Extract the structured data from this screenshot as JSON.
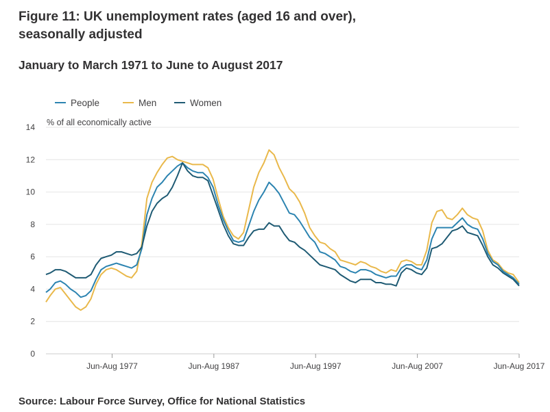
{
  "title_line1": "Figure 11: UK unemployment rates (aged 16 and over),",
  "title_line2": "seasonally adjusted",
  "subtitle": "January to March 1971 to June to August 2017",
  "source": "Source: Labour Force Survey, Office for National Statistics",
  "colors": {
    "people": "#2b83b0",
    "men": "#e9b84a",
    "women": "#1e5a73",
    "grid": "#e4e4e4",
    "axis": "#cccccc"
  },
  "chart_data": {
    "type": "line",
    "ylabel": "% of all economically active",
    "xlabel": "",
    "ylim": [
      0,
      14
    ],
    "yticks": [
      0,
      2,
      4,
      6,
      8,
      10,
      12,
      14
    ],
    "xlim": [
      1971.08,
      2017.58
    ],
    "xticks": [
      {
        "value": 1977.58,
        "label": "Jun-Aug 1977"
      },
      {
        "value": 1987.58,
        "label": "Jun-Aug 1987"
      },
      {
        "value": 1997.58,
        "label": "Jun-Aug 1997"
      },
      {
        "value": 2007.58,
        "label": "Jun-Aug 2007"
      },
      {
        "value": 2017.58,
        "label": "Jun-Aug 2017"
      }
    ],
    "grid": "horizontal",
    "legend_position": "top-left",
    "series": [
      {
        "key": "people",
        "name": "People",
        "points": [
          [
            1971.08,
            3.8
          ],
          [
            1971.5,
            4.0
          ],
          [
            1972.0,
            4.4
          ],
          [
            1972.5,
            4.5
          ],
          [
            1973.0,
            4.3
          ],
          [
            1973.5,
            4.0
          ],
          [
            1974.0,
            3.8
          ],
          [
            1974.5,
            3.5
          ],
          [
            1975.0,
            3.6
          ],
          [
            1975.5,
            3.9
          ],
          [
            1976.0,
            4.6
          ],
          [
            1976.5,
            5.2
          ],
          [
            1977.0,
            5.4
          ],
          [
            1977.5,
            5.5
          ],
          [
            1978.0,
            5.6
          ],
          [
            1978.5,
            5.5
          ],
          [
            1979.0,
            5.4
          ],
          [
            1979.5,
            5.3
          ],
          [
            1980.0,
            5.5
          ],
          [
            1980.5,
            6.5
          ],
          [
            1981.0,
            8.6
          ],
          [
            1981.5,
            9.6
          ],
          [
            1982.0,
            10.3
          ],
          [
            1982.5,
            10.6
          ],
          [
            1983.0,
            11.0
          ],
          [
            1983.5,
            11.3
          ],
          [
            1984.0,
            11.6
          ],
          [
            1984.5,
            11.8
          ],
          [
            1985.0,
            11.5
          ],
          [
            1985.5,
            11.3
          ],
          [
            1986.0,
            11.2
          ],
          [
            1986.5,
            11.2
          ],
          [
            1987.0,
            10.9
          ],
          [
            1987.5,
            10.3
          ],
          [
            1988.0,
            9.2
          ],
          [
            1988.5,
            8.3
          ],
          [
            1989.0,
            7.6
          ],
          [
            1989.5,
            7.0
          ],
          [
            1990.0,
            6.9
          ],
          [
            1990.5,
            7.0
          ],
          [
            1991.0,
            7.9
          ],
          [
            1991.5,
            8.8
          ],
          [
            1992.0,
            9.5
          ],
          [
            1992.5,
            10.0
          ],
          [
            1993.0,
            10.6
          ],
          [
            1993.5,
            10.3
          ],
          [
            1994.0,
            9.9
          ],
          [
            1994.5,
            9.3
          ],
          [
            1995.0,
            8.7
          ],
          [
            1995.5,
            8.6
          ],
          [
            1996.0,
            8.2
          ],
          [
            1996.5,
            7.7
          ],
          [
            1997.0,
            7.2
          ],
          [
            1997.5,
            6.9
          ],
          [
            1998.0,
            6.3
          ],
          [
            1998.5,
            6.2
          ],
          [
            1999.0,
            6.0
          ],
          [
            1999.5,
            5.8
          ],
          [
            2000.0,
            5.4
          ],
          [
            2000.5,
            5.3
          ],
          [
            2001.0,
            5.1
          ],
          [
            2001.5,
            5.0
          ],
          [
            2002.0,
            5.2
          ],
          [
            2002.5,
            5.2
          ],
          [
            2003.0,
            5.1
          ],
          [
            2003.5,
            4.9
          ],
          [
            2004.0,
            4.8
          ],
          [
            2004.5,
            4.7
          ],
          [
            2005.0,
            4.8
          ],
          [
            2005.5,
            4.8
          ],
          [
            2006.0,
            5.3
          ],
          [
            2006.5,
            5.5
          ],
          [
            2007.0,
            5.5
          ],
          [
            2007.5,
            5.3
          ],
          [
            2008.0,
            5.2
          ],
          [
            2008.5,
            5.8
          ],
          [
            2009.0,
            7.1
          ],
          [
            2009.5,
            7.8
          ],
          [
            2010.0,
            7.8
          ],
          [
            2010.5,
            7.8
          ],
          [
            2011.0,
            7.8
          ],
          [
            2011.5,
            8.1
          ],
          [
            2012.0,
            8.4
          ],
          [
            2012.5,
            8.0
          ],
          [
            2013.0,
            7.8
          ],
          [
            2013.5,
            7.7
          ],
          [
            2014.0,
            7.1
          ],
          [
            2014.5,
            6.2
          ],
          [
            2015.0,
            5.7
          ],
          [
            2015.5,
            5.5
          ],
          [
            2016.0,
            5.1
          ],
          [
            2016.5,
            4.9
          ],
          [
            2017.0,
            4.7
          ],
          [
            2017.58,
            4.3
          ]
        ]
      },
      {
        "key": "men",
        "name": "Men",
        "points": [
          [
            1971.08,
            3.2
          ],
          [
            1971.5,
            3.6
          ],
          [
            1972.0,
            4.0
          ],
          [
            1972.5,
            4.1
          ],
          [
            1973.0,
            3.7
          ],
          [
            1973.5,
            3.3
          ],
          [
            1974.0,
            2.9
          ],
          [
            1974.5,
            2.7
          ],
          [
            1975.0,
            2.9
          ],
          [
            1975.5,
            3.4
          ],
          [
            1976.0,
            4.3
          ],
          [
            1976.5,
            4.9
          ],
          [
            1977.0,
            5.2
          ],
          [
            1977.5,
            5.3
          ],
          [
            1978.0,
            5.2
          ],
          [
            1978.5,
            5.0
          ],
          [
            1979.0,
            4.8
          ],
          [
            1979.5,
            4.7
          ],
          [
            1980.0,
            5.1
          ],
          [
            1980.5,
            6.8
          ],
          [
            1981.0,
            9.6
          ],
          [
            1981.5,
            10.6
          ],
          [
            1982.0,
            11.2
          ],
          [
            1982.5,
            11.7
          ],
          [
            1983.0,
            12.1
          ],
          [
            1983.5,
            12.2
          ],
          [
            1984.0,
            12.0
          ],
          [
            1984.5,
            11.9
          ],
          [
            1985.0,
            11.8
          ],
          [
            1985.5,
            11.7
          ],
          [
            1986.0,
            11.7
          ],
          [
            1986.5,
            11.7
          ],
          [
            1987.0,
            11.5
          ],
          [
            1987.5,
            10.8
          ],
          [
            1988.0,
            9.6
          ],
          [
            1988.5,
            8.5
          ],
          [
            1989.0,
            7.8
          ],
          [
            1989.5,
            7.3
          ],
          [
            1990.0,
            7.1
          ],
          [
            1990.5,
            7.5
          ],
          [
            1991.0,
            8.9
          ],
          [
            1991.5,
            10.3
          ],
          [
            1992.0,
            11.2
          ],
          [
            1992.5,
            11.8
          ],
          [
            1993.0,
            12.6
          ],
          [
            1993.5,
            12.3
          ],
          [
            1994.0,
            11.5
          ],
          [
            1994.5,
            10.9
          ],
          [
            1995.0,
            10.2
          ],
          [
            1995.5,
            9.9
          ],
          [
            1996.0,
            9.4
          ],
          [
            1996.5,
            8.7
          ],
          [
            1997.0,
            7.8
          ],
          [
            1997.5,
            7.3
          ],
          [
            1998.0,
            6.9
          ],
          [
            1998.5,
            6.8
          ],
          [
            1999.0,
            6.5
          ],
          [
            1999.5,
            6.3
          ],
          [
            2000.0,
            5.8
          ],
          [
            2000.5,
            5.7
          ],
          [
            2001.0,
            5.6
          ],
          [
            2001.5,
            5.5
          ],
          [
            2002.0,
            5.7
          ],
          [
            2002.5,
            5.6
          ],
          [
            2003.0,
            5.4
          ],
          [
            2003.5,
            5.3
          ],
          [
            2004.0,
            5.1
          ],
          [
            2004.5,
            5.0
          ],
          [
            2005.0,
            5.2
          ],
          [
            2005.5,
            5.1
          ],
          [
            2006.0,
            5.7
          ],
          [
            2006.5,
            5.8
          ],
          [
            2007.0,
            5.7
          ],
          [
            2007.5,
            5.5
          ],
          [
            2008.0,
            5.5
          ],
          [
            2008.5,
            6.4
          ],
          [
            2009.0,
            8.1
          ],
          [
            2009.5,
            8.8
          ],
          [
            2010.0,
            8.9
          ],
          [
            2010.5,
            8.4
          ],
          [
            2011.0,
            8.3
          ],
          [
            2011.5,
            8.6
          ],
          [
            2012.0,
            9.0
          ],
          [
            2012.5,
            8.6
          ],
          [
            2013.0,
            8.4
          ],
          [
            2013.5,
            8.3
          ],
          [
            2014.0,
            7.6
          ],
          [
            2014.5,
            6.4
          ],
          [
            2015.0,
            5.8
          ],
          [
            2015.5,
            5.6
          ],
          [
            2016.0,
            5.2
          ],
          [
            2016.5,
            5.0
          ],
          [
            2017.0,
            4.9
          ],
          [
            2017.58,
            4.4
          ]
        ]
      },
      {
        "key": "women",
        "name": "Women",
        "points": [
          [
            1971.08,
            4.9
          ],
          [
            1971.5,
            5.0
          ],
          [
            1972.0,
            5.2
          ],
          [
            1972.5,
            5.2
          ],
          [
            1973.0,
            5.1
          ],
          [
            1973.5,
            4.9
          ],
          [
            1974.0,
            4.7
          ],
          [
            1974.5,
            4.7
          ],
          [
            1975.0,
            4.7
          ],
          [
            1975.5,
            4.9
          ],
          [
            1976.0,
            5.5
          ],
          [
            1976.5,
            5.9
          ],
          [
            1977.0,
            6.0
          ],
          [
            1977.5,
            6.1
          ],
          [
            1978.0,
            6.3
          ],
          [
            1978.5,
            6.3
          ],
          [
            1979.0,
            6.2
          ],
          [
            1979.5,
            6.1
          ],
          [
            1980.0,
            6.2
          ],
          [
            1980.5,
            6.6
          ],
          [
            1981.0,
            7.9
          ],
          [
            1981.5,
            8.8
          ],
          [
            1982.0,
            9.3
          ],
          [
            1982.5,
            9.6
          ],
          [
            1983.0,
            9.8
          ],
          [
            1983.5,
            10.3
          ],
          [
            1984.0,
            11.0
          ],
          [
            1984.5,
            11.8
          ],
          [
            1985.0,
            11.3
          ],
          [
            1985.5,
            11.0
          ],
          [
            1986.0,
            10.9
          ],
          [
            1986.5,
            10.9
          ],
          [
            1987.0,
            10.7
          ],
          [
            1987.5,
            9.8
          ],
          [
            1988.0,
            8.9
          ],
          [
            1988.5,
            8.0
          ],
          [
            1989.0,
            7.3
          ],
          [
            1989.5,
            6.8
          ],
          [
            1990.0,
            6.7
          ],
          [
            1990.5,
            6.7
          ],
          [
            1991.0,
            7.2
          ],
          [
            1991.5,
            7.6
          ],
          [
            1992.0,
            7.7
          ],
          [
            1992.5,
            7.7
          ],
          [
            1993.0,
            8.1
          ],
          [
            1993.5,
            7.9
          ],
          [
            1994.0,
            7.9
          ],
          [
            1994.5,
            7.4
          ],
          [
            1995.0,
            7.0
          ],
          [
            1995.5,
            6.9
          ],
          [
            1996.0,
            6.6
          ],
          [
            1996.5,
            6.4
          ],
          [
            1997.0,
            6.1
          ],
          [
            1997.5,
            5.8
          ],
          [
            1998.0,
            5.5
          ],
          [
            1998.5,
            5.4
          ],
          [
            1999.0,
            5.3
          ],
          [
            1999.5,
            5.2
          ],
          [
            2000.0,
            4.9
          ],
          [
            2000.5,
            4.7
          ],
          [
            2001.0,
            4.5
          ],
          [
            2001.5,
            4.4
          ],
          [
            2002.0,
            4.6
          ],
          [
            2002.5,
            4.6
          ],
          [
            2003.0,
            4.6
          ],
          [
            2003.5,
            4.4
          ],
          [
            2004.0,
            4.4
          ],
          [
            2004.5,
            4.3
          ],
          [
            2005.0,
            4.3
          ],
          [
            2005.5,
            4.2
          ],
          [
            2006.0,
            5.0
          ],
          [
            2006.5,
            5.3
          ],
          [
            2007.0,
            5.2
          ],
          [
            2007.5,
            5.0
          ],
          [
            2008.0,
            4.9
          ],
          [
            2008.5,
            5.3
          ],
          [
            2009.0,
            6.5
          ],
          [
            2009.5,
            6.6
          ],
          [
            2010.0,
            6.8
          ],
          [
            2010.5,
            7.2
          ],
          [
            2011.0,
            7.6
          ],
          [
            2011.5,
            7.7
          ],
          [
            2012.0,
            7.9
          ],
          [
            2012.5,
            7.5
          ],
          [
            2013.0,
            7.4
          ],
          [
            2013.5,
            7.3
          ],
          [
            2014.0,
            6.7
          ],
          [
            2014.5,
            6.0
          ],
          [
            2015.0,
            5.5
          ],
          [
            2015.5,
            5.3
          ],
          [
            2016.0,
            5.0
          ],
          [
            2016.5,
            4.8
          ],
          [
            2017.0,
            4.6
          ],
          [
            2017.58,
            4.2
          ]
        ]
      }
    ]
  }
}
